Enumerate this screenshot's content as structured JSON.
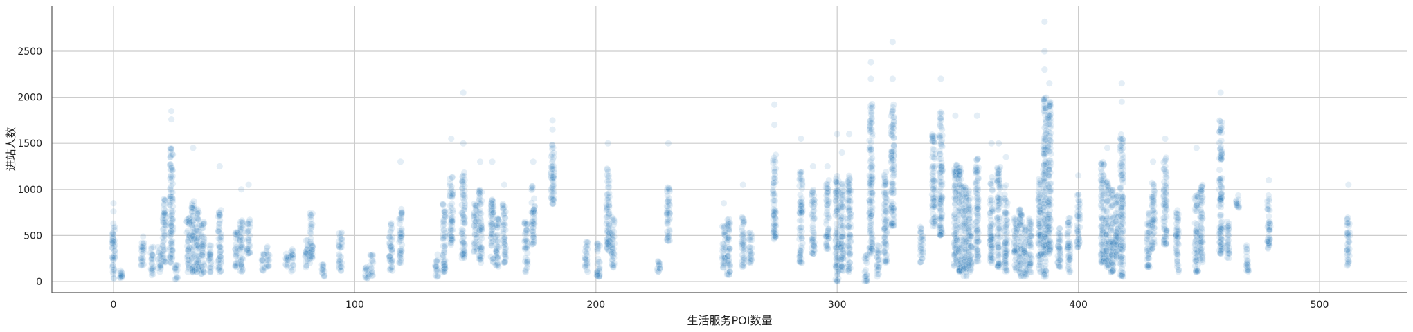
{
  "chart_data": {
    "type": "scatter",
    "title": "",
    "xlabel": "生活服务POI数量",
    "ylabel": "进站人数",
    "xlim": [
      -25,
      535
    ],
    "ylim": [
      -130,
      2950
    ],
    "xticks": [
      0,
      100,
      200,
      300,
      400,
      500
    ],
    "yticks": [
      0,
      500,
      1000,
      1500,
      2000,
      2500
    ],
    "grid": true,
    "point_color": "#1f77b4",
    "point_alpha": 0.12,
    "clusters": [
      {
        "x": 0,
        "min": 30,
        "max": 650,
        "outliers": [
          760,
          850
        ]
      },
      {
        "x": 3,
        "min": 40,
        "max": 120,
        "outliers": []
      },
      {
        "x": 12,
        "min": 150,
        "max": 500,
        "outliers": []
      },
      {
        "x": 16,
        "min": 60,
        "max": 400,
        "outliers": []
      },
      {
        "x": 19,
        "min": 100,
        "max": 380,
        "outliers": []
      },
      {
        "x": 21,
        "min": 200,
        "max": 900,
        "outliers": []
      },
      {
        "x": 24,
        "min": 200,
        "max": 1500,
        "outliers": [
          1760,
          1850
        ]
      },
      {
        "x": 26,
        "min": 0,
        "max": 200,
        "outliers": []
      },
      {
        "x": 31,
        "min": 100,
        "max": 700,
        "outliers": []
      },
      {
        "x": 33,
        "min": 100,
        "max": 900,
        "outliers": [
          1450
        ]
      },
      {
        "x": 35,
        "min": 100,
        "max": 800,
        "outliers": []
      },
      {
        "x": 37,
        "min": 80,
        "max": 650,
        "outliers": []
      },
      {
        "x": 40,
        "min": 100,
        "max": 420,
        "outliers": []
      },
      {
        "x": 44,
        "min": 100,
        "max": 800,
        "outliers": [
          1250
        ]
      },
      {
        "x": 51,
        "min": 150,
        "max": 550,
        "outliers": []
      },
      {
        "x": 53,
        "min": 100,
        "max": 700,
        "outliers": [
          1000
        ]
      },
      {
        "x": 56,
        "min": 300,
        "max": 700,
        "outliers": [
          1050
        ]
      },
      {
        "x": 62,
        "min": 100,
        "max": 300,
        "outliers": []
      },
      {
        "x": 64,
        "min": 150,
        "max": 380,
        "outliers": []
      },
      {
        "x": 72,
        "min": 100,
        "max": 300,
        "outliers": []
      },
      {
        "x": 74,
        "min": 100,
        "max": 350,
        "outliers": []
      },
      {
        "x": 80,
        "min": 150,
        "max": 450,
        "outliers": []
      },
      {
        "x": 82,
        "min": 200,
        "max": 750,
        "outliers": []
      },
      {
        "x": 87,
        "min": 50,
        "max": 200,
        "outliers": []
      },
      {
        "x": 94,
        "min": 100,
        "max": 550,
        "outliers": []
      },
      {
        "x": 105,
        "min": 20,
        "max": 180,
        "outliers": []
      },
      {
        "x": 107,
        "min": 60,
        "max": 300,
        "outliers": []
      },
      {
        "x": 115,
        "min": 100,
        "max": 650,
        "outliers": []
      },
      {
        "x": 119,
        "min": 200,
        "max": 800,
        "outliers": [
          1300
        ]
      },
      {
        "x": 134,
        "min": 50,
        "max": 300,
        "outliers": []
      },
      {
        "x": 137,
        "min": 100,
        "max": 850,
        "outliers": []
      },
      {
        "x": 140,
        "min": 400,
        "max": 1150,
        "outliers": [
          1550
        ]
      },
      {
        "x": 145,
        "min": 250,
        "max": 1200,
        "outliers": [
          1500,
          2050
        ]
      },
      {
        "x": 150,
        "min": 300,
        "max": 850,
        "outliers": []
      },
      {
        "x": 152,
        "min": 200,
        "max": 1000,
        "outliers": [
          1300
        ]
      },
      {
        "x": 157,
        "min": 200,
        "max": 900,
        "outliers": [
          1300
        ]
      },
      {
        "x": 159,
        "min": 150,
        "max": 700,
        "outliers": []
      },
      {
        "x": 162,
        "min": 200,
        "max": 850,
        "outliers": [
          1050
        ]
      },
      {
        "x": 171,
        "min": 100,
        "max": 650,
        "outliers": []
      },
      {
        "x": 174,
        "min": 400,
        "max": 1050,
        "outliers": [
          1300
        ]
      },
      {
        "x": 182,
        "min": 800,
        "max": 1500,
        "outliers": [
          1650,
          1750
        ]
      },
      {
        "x": 196,
        "min": 100,
        "max": 450,
        "outliers": []
      },
      {
        "x": 201,
        "min": 50,
        "max": 450,
        "outliers": []
      },
      {
        "x": 205,
        "min": 300,
        "max": 1250,
        "outliers": [
          1500
        ]
      },
      {
        "x": 207,
        "min": 150,
        "max": 700,
        "outliers": []
      },
      {
        "x": 226,
        "min": 100,
        "max": 250,
        "outliers": []
      },
      {
        "x": 230,
        "min": 400,
        "max": 1050,
        "outliers": [
          1500
        ]
      },
      {
        "x": 253,
        "min": 150,
        "max": 600,
        "outliers": [
          850
        ]
      },
      {
        "x": 255,
        "min": 50,
        "max": 700,
        "outliers": []
      },
      {
        "x": 261,
        "min": 150,
        "max": 700,
        "outliers": [
          1050
        ]
      },
      {
        "x": 264,
        "min": 200,
        "max": 550,
        "outliers": []
      },
      {
        "x": 274,
        "min": 450,
        "max": 1400,
        "outliers": [
          1700,
          1920
        ]
      },
      {
        "x": 285,
        "min": 200,
        "max": 1200,
        "outliers": [
          1550
        ]
      },
      {
        "x": 290,
        "min": 300,
        "max": 1000,
        "outliers": [
          1250
        ]
      },
      {
        "x": 296,
        "min": 350,
        "max": 1100,
        "outliers": [
          1250
        ]
      },
      {
        "x": 300,
        "min": 0,
        "max": 1150,
        "outliers": [
          1600
        ]
      },
      {
        "x": 302,
        "min": 100,
        "max": 1100,
        "outliers": [
          1400
        ]
      },
      {
        "x": 305,
        "min": 100,
        "max": 1150,
        "outliers": [
          1600
        ]
      },
      {
        "x": 312,
        "min": 0,
        "max": 300,
        "outliers": []
      },
      {
        "x": 314,
        "min": 300,
        "max": 1950,
        "outliers": [
          2200,
          2380
        ]
      },
      {
        "x": 317,
        "min": 50,
        "max": 400,
        "outliers": []
      },
      {
        "x": 320,
        "min": 200,
        "max": 1200,
        "outliers": []
      },
      {
        "x": 323,
        "min": 600,
        "max": 1950,
        "outliers": [
          2200,
          2600
        ]
      },
      {
        "x": 335,
        "min": 200,
        "max": 600,
        "outliers": []
      },
      {
        "x": 340,
        "min": 600,
        "max": 1600,
        "outliers": []
      },
      {
        "x": 343,
        "min": 500,
        "max": 1850,
        "outliers": [
          2200
        ]
      },
      {
        "x": 349,
        "min": 100,
        "max": 1300,
        "outliers": [
          1800
        ]
      },
      {
        "x": 351,
        "min": 100,
        "max": 1250,
        "outliers": []
      },
      {
        "x": 353,
        "min": 50,
        "max": 1100,
        "outliers": []
      },
      {
        "x": 355,
        "min": 100,
        "max": 1000,
        "outliers": []
      },
      {
        "x": 358,
        "min": 200,
        "max": 1350,
        "outliers": [
          1800
        ]
      },
      {
        "x": 364,
        "min": 200,
        "max": 1150,
        "outliers": [
          1500
        ]
      },
      {
        "x": 367,
        "min": 150,
        "max": 1300,
        "outliers": [
          1500
        ]
      },
      {
        "x": 370,
        "min": 100,
        "max": 1050,
        "outliers": [
          1350
        ]
      },
      {
        "x": 374,
        "min": 100,
        "max": 700,
        "outliers": []
      },
      {
        "x": 376,
        "min": 50,
        "max": 800,
        "outliers": []
      },
      {
        "x": 378,
        "min": 50,
        "max": 600,
        "outliers": []
      },
      {
        "x": 380,
        "min": 100,
        "max": 700,
        "outliers": []
      },
      {
        "x": 384,
        "min": 100,
        "max": 1150,
        "outliers": []
      },
      {
        "x": 386,
        "min": 50,
        "max": 2000,
        "outliers": [
          2300,
          2500,
          2820
        ]
      },
      {
        "x": 388,
        "min": 300,
        "max": 1950,
        "outliers": [
          2150
        ]
      },
      {
        "x": 392,
        "min": 150,
        "max": 650,
        "outliers": []
      },
      {
        "x": 396,
        "min": 100,
        "max": 700,
        "outliers": []
      },
      {
        "x": 400,
        "min": 350,
        "max": 950,
        "outliers": [
          1150
        ]
      },
      {
        "x": 410,
        "min": 200,
        "max": 1300,
        "outliers": []
      },
      {
        "x": 412,
        "min": 150,
        "max": 1100,
        "outliers": [
          1450
        ]
      },
      {
        "x": 414,
        "min": 100,
        "max": 1000,
        "outliers": []
      },
      {
        "x": 416,
        "min": 200,
        "max": 950,
        "outliers": []
      },
      {
        "x": 418,
        "min": 50,
        "max": 1600,
        "outliers": [
          1950,
          2150
        ]
      },
      {
        "x": 429,
        "min": 150,
        "max": 750,
        "outliers": []
      },
      {
        "x": 431,
        "min": 350,
        "max": 1100,
        "outliers": [
          1300
        ]
      },
      {
        "x": 436,
        "min": 400,
        "max": 1350,
        "outliers": [
          1550
        ]
      },
      {
        "x": 441,
        "min": 100,
        "max": 800,
        "outliers": []
      },
      {
        "x": 449,
        "min": 100,
        "max": 950,
        "outliers": [
          1450
        ]
      },
      {
        "x": 451,
        "min": 200,
        "max": 1050,
        "outliers": []
      },
      {
        "x": 459,
        "min": 300,
        "max": 1750,
        "outliers": [
          2050
        ]
      },
      {
        "x": 462,
        "min": 250,
        "max": 650,
        "outliers": []
      },
      {
        "x": 466,
        "min": 800,
        "max": 950,
        "outliers": []
      },
      {
        "x": 470,
        "min": 100,
        "max": 400,
        "outliers": []
      },
      {
        "x": 479,
        "min": 350,
        "max": 950,
        "outliers": [
          1100
        ]
      },
      {
        "x": 512,
        "min": 150,
        "max": 700,
        "outliers": [
          1050
        ]
      }
    ]
  }
}
